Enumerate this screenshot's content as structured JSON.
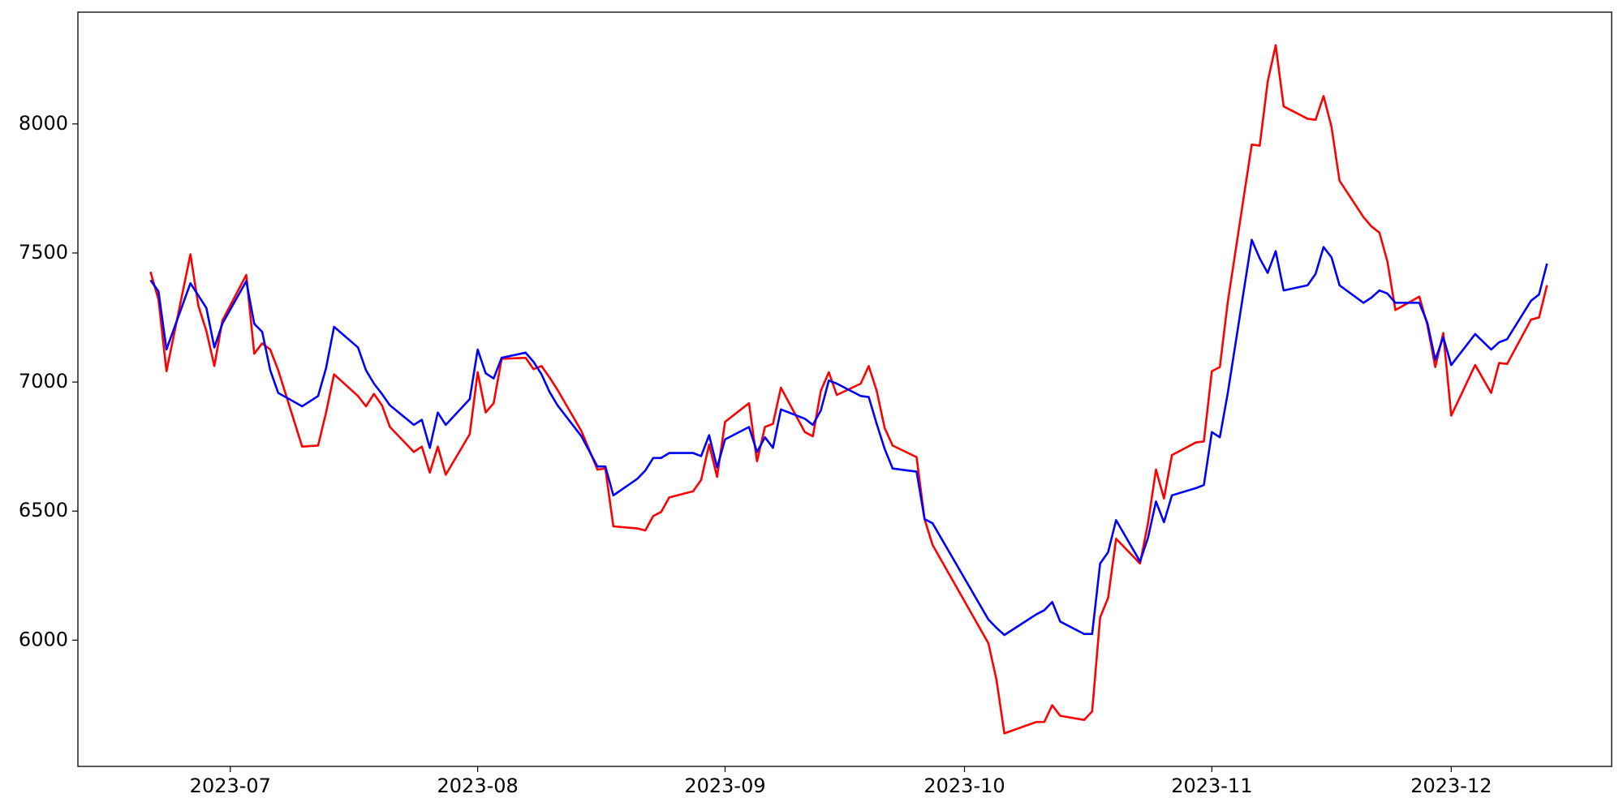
{
  "chart_data": {
    "type": "line",
    "x": [
      19529,
      19530,
      19531,
      19534,
      19535,
      19536,
      19537,
      19538,
      19541,
      19542,
      19543,
      19544,
      19545,
      19548,
      19550,
      19551,
      19552,
      19555,
      19556,
      19557,
      19558,
      19559,
      19562,
      19563,
      19564,
      19565,
      19566,
      19569,
      19570,
      19571,
      19572,
      19573,
      19576,
      19577,
      19578,
      19579,
      19580,
      19583,
      19585,
      19586,
      19587,
      19590,
      19591,
      19592,
      19593,
      19594,
      19597,
      19598,
      19599,
      19600,
      19601,
      19604,
      19605,
      19606,
      19607,
      19608,
      19611,
      19612,
      19613,
      19614,
      19615,
      19618,
      19619,
      19620,
      19621,
      19622,
      19625,
      19626,
      19627,
      19634,
      19635,
      19636,
      19640,
      19641,
      19642,
      19643,
      19646,
      19647,
      19648,
      19649,
      19650,
      19653,
      19654,
      19655,
      19656,
      19657,
      19660,
      19661,
      19662,
      19663,
      19664,
      19667,
      19668,
      19669,
      19670,
      19671,
      19674,
      19675,
      19676,
      19677,
      19678,
      19681,
      19682,
      19683,
      19684,
      19685,
      19688,
      19689,
      19690,
      19691,
      19692,
      19695,
      19697,
      19698,
      19699,
      19702,
      19703,
      19704
    ],
    "series": [
      {
        "color": "#ff0000",
        "values": [
          7427,
          7319,
          7042,
          7495,
          7295,
          7198,
          7062,
          7238,
          7415,
          7110,
          7150,
          7126,
          7046,
          6750,
          6754,
          6882,
          7030,
          6946,
          6906,
          6954,
          6910,
          6826,
          6729,
          6750,
          6649,
          6750,
          6641,
          6798,
          7038,
          6882,
          6918,
          7090,
          7094,
          7050,
          7062,
          7018,
          6970,
          6810,
          6661,
          6665,
          6441,
          6433,
          6425,
          6481,
          6497,
          6553,
          6577,
          6621,
          6758,
          6633,
          6846,
          6918,
          6693,
          6826,
          6838,
          6978,
          6806,
          6790,
          6966,
          7038,
          6950,
          6994,
          7062,
          6966,
          6822,
          6754,
          6709,
          6469,
          6369,
          5988,
          5848,
          5639,
          5683,
          5683,
          5748,
          5707,
          5691,
          5724,
          6088,
          6164,
          6393,
          6297,
          6453,
          6661,
          6549,
          6717,
          6766,
          6770,
          7042,
          7058,
          7311,
          7920,
          7916,
          8164,
          8305,
          8068,
          8020,
          8016,
          8108,
          7988,
          7780,
          7639,
          7603,
          7579,
          7467,
          7279,
          7331,
          7222,
          7058,
          7190,
          6870,
          7066,
          6958,
          7074,
          7070,
          7242,
          7250,
          7375
        ]
      },
      {
        "color": "#0000ff",
        "values": [
          7395,
          7351,
          7126,
          7383,
          7335,
          7287,
          7134,
          7226,
          7391,
          7226,
          7194,
          7046,
          6958,
          6906,
          6946,
          7054,
          7214,
          7134,
          7046,
          6994,
          6954,
          6910,
          6834,
          6854,
          6745,
          6882,
          6834,
          6934,
          7126,
          7034,
          7014,
          7094,
          7114,
          7078,
          7030,
          6962,
          6910,
          6790,
          6673,
          6673,
          6561,
          6625,
          6657,
          6706,
          6706,
          6725,
          6725,
          6713,
          6794,
          6669,
          6778,
          6826,
          6729,
          6786,
          6745,
          6894,
          6858,
          6834,
          6890,
          7006,
          6994,
          6946,
          6942,
          6838,
          6741,
          6665,
          6653,
          6469,
          6453,
          6080,
          6048,
          6020,
          6100,
          6116,
          6148,
          6072,
          6024,
          6024,
          6297,
          6341,
          6465,
          6305,
          6397,
          6537,
          6457,
          6561,
          6589,
          6601,
          6806,
          6786,
          6958,
          7551,
          7479,
          7423,
          7507,
          7355,
          7375,
          7419,
          7523,
          7483,
          7375,
          7307,
          7327,
          7355,
          7343,
          7307,
          7307,
          7230,
          7086,
          7174,
          7066,
          7186,
          7126,
          7154,
          7166,
          7315,
          7339,
          7459
        ]
      }
    ],
    "xlim": [
      19519.9,
      19712.1
    ],
    "xticks": [
      {
        "value": 19539,
        "label": "2023-07"
      },
      {
        "value": 19570,
        "label": "2023-08"
      },
      {
        "value": 19601,
        "label": "2023-09"
      },
      {
        "value": 19631,
        "label": "2023-10"
      },
      {
        "value": 19662,
        "label": "2023-11"
      },
      {
        "value": 19692,
        "label": "2023-12"
      }
    ],
    "ylim": [
      5511,
      8433
    ],
    "yticks": [
      6000,
      6500,
      7000,
      7500,
      8000
    ],
    "grid": false
  }
}
